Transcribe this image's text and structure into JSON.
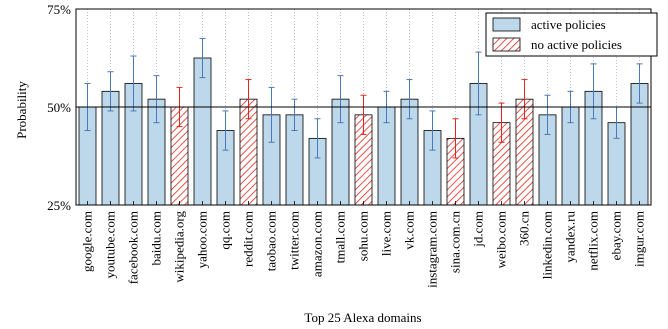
{
  "chart_data": {
    "type": "bar",
    "xlabel": "Top 25 Alexa domains",
    "ylabel": "Probability",
    "ylim": [
      25,
      75
    ],
    "yticks": [
      25,
      50,
      75
    ],
    "ytick_labels": [
      "25%",
      "50%",
      "75%"
    ],
    "reference_line": 50,
    "grid": "vertical dotted at each category",
    "legend_position": "top-right",
    "categories": [
      "google.com",
      "youtube.com",
      "facebook.com",
      "baidu.com",
      "wikipedia.org",
      "yahoo.com",
      "qq.com",
      "reddit.com",
      "taobao.com",
      "twitter.com",
      "amazon.com",
      "tmall.com",
      "sohu.com",
      "live.com",
      "vk.com",
      "instagram.com",
      "sina.com.cn",
      "jd.com",
      "weibo.com",
      "360.cn",
      "linkedin.com",
      "yandex.ru",
      "netflix.com",
      "ebay.com",
      "imgur.com"
    ],
    "series": [
      {
        "name": "active policies",
        "color": "#bcd8ea",
        "error_color": "#4a78b8",
        "values": [
          50,
          54,
          56,
          52,
          null,
          62.5,
          44,
          null,
          48,
          48,
          42,
          52,
          null,
          50,
          52,
          44,
          null,
          56,
          null,
          null,
          48,
          50,
          54,
          46,
          56
        ],
        "errors": [
          6,
          5,
          7,
          6,
          null,
          5,
          5,
          null,
          7,
          4,
          5,
          6,
          null,
          4,
          5,
          5,
          null,
          8,
          null,
          null,
          5,
          4,
          7,
          4,
          5
        ]
      },
      {
        "name": "no active policies",
        "color": "#e0281e",
        "error_color": "#e0281e",
        "values": [
          null,
          null,
          null,
          null,
          50,
          null,
          null,
          52,
          null,
          null,
          null,
          null,
          48,
          null,
          null,
          null,
          42,
          null,
          46,
          52,
          null,
          null,
          null,
          null,
          null
        ],
        "errors": [
          null,
          null,
          null,
          null,
          5,
          null,
          null,
          5,
          null,
          null,
          null,
          null,
          5,
          null,
          null,
          null,
          5,
          null,
          5,
          5,
          null,
          null,
          null,
          null,
          null
        ]
      }
    ]
  }
}
